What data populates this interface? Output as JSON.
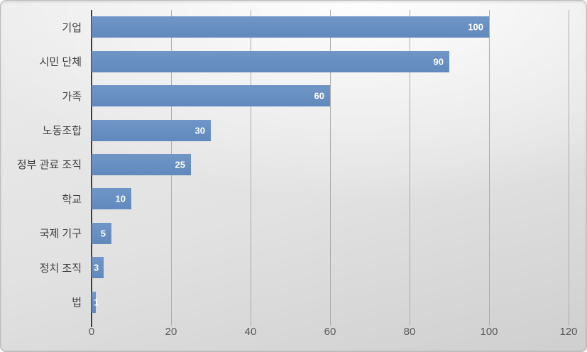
{
  "chart_data": {
    "type": "bar",
    "orientation": "horizontal",
    "title": "",
    "categories": [
      "기업",
      "시민 단체",
      "가족",
      "노동조합",
      "정부 관료 조직",
      "학교",
      "국제 기구",
      "정치 조직",
      "법"
    ],
    "values": [
      100,
      90,
      60,
      30,
      25,
      10,
      5,
      3,
      1
    ],
    "data_labels": [
      "100",
      "90",
      "60",
      "30",
      "25",
      "10",
      "5",
      "3",
      "1"
    ],
    "xlabel": "",
    "ylabel": "",
    "xlim": [
      0,
      120
    ],
    "xticks": [
      0,
      20,
      40,
      60,
      80,
      100,
      120
    ],
    "grid": true,
    "legend": false,
    "colors": {
      "bar": "#6690C2",
      "data_label": "#FFFFFF",
      "axis_line": "#3F3F3F",
      "gridline": "#ABABAB",
      "tick_label": "#595959",
      "category_label": "#3B3B3B",
      "background_top": "#F5F5F5",
      "background_bottom": "#CFCFCF"
    }
  }
}
